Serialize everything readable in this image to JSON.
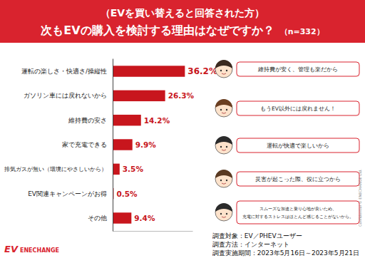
{
  "chart_data": {
    "type": "bar",
    "orientation": "horizontal",
    "subtitle": "（EVを買い替えると回答された方）",
    "title": "次もEVの購入を検討する理由はなぜですか？",
    "annotations": [
      "（n=332）"
    ],
    "categories": [
      "運転の楽しさ・快適さ/操縦性",
      "ガソリン車には戻れないから",
      "維持費の安さ",
      "家で充電できる",
      "排気ガスが無い（環境にやさしいから）",
      "EV関連キャンペーンがお得",
      "その他"
    ],
    "values": [
      36.2,
      26.3,
      14.2,
      9.9,
      3.5,
      0.5,
      9.4
    ],
    "value_labels": [
      "36.2%",
      "26.3%",
      "14.2%",
      "9.9%",
      "3.5%",
      "0.5%",
      "9.4%"
    ],
    "data_labels": true,
    "color": "#c8161d",
    "xlim": [
      0,
      40
    ],
    "tick_labels": "y"
  },
  "comments": [
    [
      "維持費が安く、管理も楽だから"
    ],
    [
      "もうEV以外には戻れません！"
    ],
    [
      "運転が快適で楽しいから"
    ],
    [
      "災害が起こった際、役に立つから"
    ],
    [
      "スムーズな加速と乗り心地が良いため、",
      "充電に対するストレスはほとんど感じることがないから。"
    ]
  ],
  "survey": [
    "調査対象：EV／PHEVユーザー",
    "調査方法：インターネット",
    "調査実施期間：2023年5月16日～2023年5月21日"
  ],
  "logo": {
    "mark": "EV",
    "name": "ENECHANGE"
  },
  "side_note": "Confidential © ENECHANGE Ltd."
}
